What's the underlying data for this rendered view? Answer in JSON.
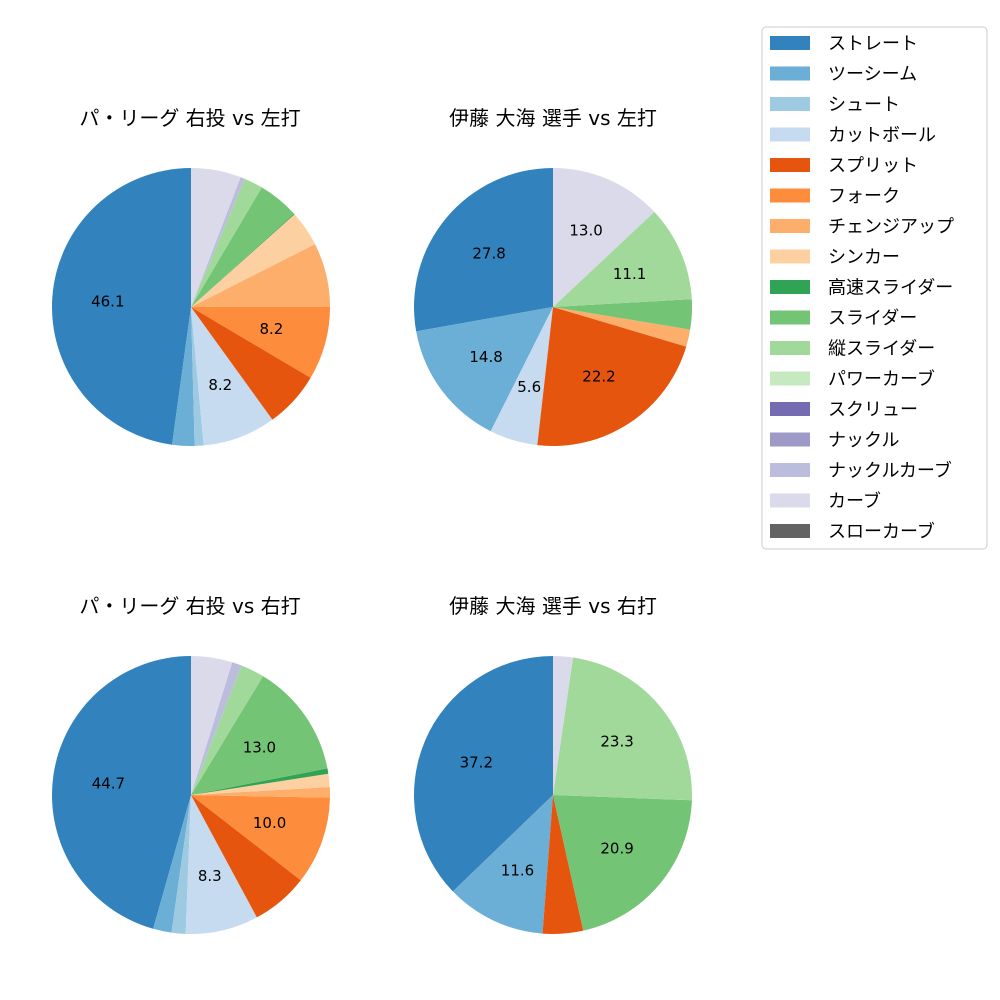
{
  "legend": {
    "items": [
      {
        "label": "ストレート",
        "color": "#3182bd"
      },
      {
        "label": "ツーシーム",
        "color": "#6baed6"
      },
      {
        "label": "シュート",
        "color": "#9ecae1"
      },
      {
        "label": "カットボール",
        "color": "#c6dbef"
      },
      {
        "label": "スプリット",
        "color": "#e6550d"
      },
      {
        "label": "フォーク",
        "color": "#fd8d3c"
      },
      {
        "label": "チェンジアップ",
        "color": "#fdae6b"
      },
      {
        "label": "シンカー",
        "color": "#fdd0a2"
      },
      {
        "label": "高速スライダー",
        "color": "#31a354"
      },
      {
        "label": "スライダー",
        "color": "#74c476"
      },
      {
        "label": "縦スライダー",
        "color": "#a1d99b"
      },
      {
        "label": "パワーカーブ",
        "color": "#c7e9c0"
      },
      {
        "label": "スクリュー",
        "color": "#756bb1"
      },
      {
        "label": "ナックル",
        "color": "#9e9ac8"
      },
      {
        "label": "ナックルカーブ",
        "color": "#bcbddc"
      },
      {
        "label": "カーブ",
        "color": "#dadaeb"
      },
      {
        "label": "スローカーブ",
        "color": "#636363"
      }
    ]
  },
  "chart_data": [
    {
      "type": "pie",
      "title": "パ・リーグ 右投 vs 左打",
      "slices": [
        {
          "category": "ストレート",
          "value": 46.1,
          "label": "46.1"
        },
        {
          "category": "ツーシーム",
          "value": 2.5,
          "label": ""
        },
        {
          "category": "シュート",
          "value": 1.0,
          "label": ""
        },
        {
          "category": "カットボール",
          "value": 8.2,
          "label": "8.2"
        },
        {
          "category": "スプリット",
          "value": 6.3,
          "label": ""
        },
        {
          "category": "フォーク",
          "value": 8.2,
          "label": "8.2"
        },
        {
          "category": "チェンジアップ",
          "value": 7.2,
          "label": ""
        },
        {
          "category": "シンカー",
          "value": 4.0,
          "label": ""
        },
        {
          "category": "高速スライダー",
          "value": 0.1,
          "label": ""
        },
        {
          "category": "スライダー",
          "value": 4.6,
          "label": ""
        },
        {
          "category": "縦スライダー",
          "value": 2.1,
          "label": ""
        },
        {
          "category": "ナックルカーブ",
          "value": 0.5,
          "label": ""
        },
        {
          "category": "カーブ",
          "value": 5.6,
          "label": ""
        }
      ]
    },
    {
      "type": "pie",
      "title": "伊藤 大海 選手 vs 左打",
      "slices": [
        {
          "category": "ストレート",
          "value": 27.8,
          "label": "27.8"
        },
        {
          "category": "ツーシーム",
          "value": 14.8,
          "label": "14.8"
        },
        {
          "category": "カットボール",
          "value": 5.6,
          "label": "5.6"
        },
        {
          "category": "スプリット",
          "value": 22.2,
          "label": "22.2"
        },
        {
          "category": "チェンジアップ",
          "value": 2.0,
          "label": ""
        },
        {
          "category": "スライダー",
          "value": 3.5,
          "label": ""
        },
        {
          "category": "縦スライダー",
          "value": 11.1,
          "label": "11.1"
        },
        {
          "category": "カーブ",
          "value": 13.0,
          "label": "13.0"
        }
      ]
    },
    {
      "type": "pie",
      "title": "パ・リーグ 右投 vs 右打",
      "slices": [
        {
          "category": "ストレート",
          "value": 44.7,
          "label": "44.7"
        },
        {
          "category": "ツーシーム",
          "value": 2.1,
          "label": ""
        },
        {
          "category": "シュート",
          "value": 1.6,
          "label": ""
        },
        {
          "category": "カットボール",
          "value": 8.3,
          "label": "8.3"
        },
        {
          "category": "スプリット",
          "value": 6.5,
          "label": ""
        },
        {
          "category": "フォーク",
          "value": 10.0,
          "label": "10.0"
        },
        {
          "category": "チェンジアップ",
          "value": 1.2,
          "label": ""
        },
        {
          "category": "シンカー",
          "value": 1.5,
          "label": ""
        },
        {
          "category": "高速スライダー",
          "value": 0.6,
          "label": ""
        },
        {
          "category": "スライダー",
          "value": 13.0,
          "label": "13.0"
        },
        {
          "category": "縦スライダー",
          "value": 2.7,
          "label": ""
        },
        {
          "category": "ナックルカーブ",
          "value": 1.1,
          "label": ""
        },
        {
          "category": "カーブ",
          "value": 4.7,
          "label": ""
        }
      ]
    },
    {
      "type": "pie",
      "title": "伊藤 大海 選手 vs 右打",
      "slices": [
        {
          "category": "ストレート",
          "value": 37.2,
          "label": "37.2"
        },
        {
          "category": "ツーシーム",
          "value": 11.6,
          "label": "11.6"
        },
        {
          "category": "スプリット",
          "value": 4.7,
          "label": ""
        },
        {
          "category": "スライダー",
          "value": 20.9,
          "label": "20.9"
        },
        {
          "category": "縦スライダー",
          "value": 23.3,
          "label": "23.3"
        },
        {
          "category": "カーブ",
          "value": 2.3,
          "label": ""
        }
      ]
    }
  ]
}
